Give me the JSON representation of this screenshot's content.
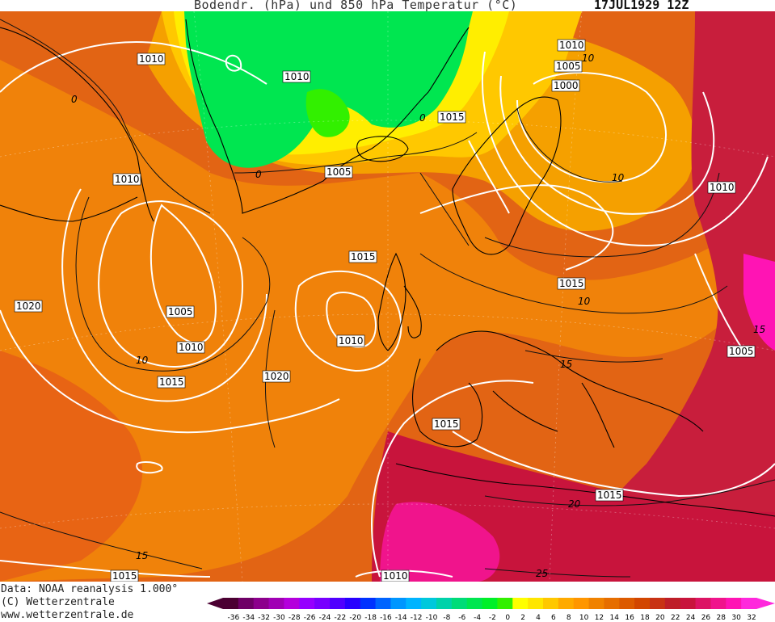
{
  "header": {
    "title": "Bodendr. (hPa) und 850 hPa Temperatur (°C)",
    "date": "17JUL1929 12Z"
  },
  "footer": {
    "data_line": "Data: NOAA reanalysis 1.000°",
    "copyright": "(C) Wetterzentrale",
    "website": "www.wetterzentrale.de"
  },
  "isobar_labels": [
    "1010",
    "1010",
    "1015",
    "1010",
    "1005",
    "1010",
    "1005",
    "1000",
    "1010",
    "1015",
    "1015",
    "1005",
    "1010",
    "1010",
    "1015",
    "1020",
    "1020",
    "1015",
    "1015",
    "1005",
    "1015",
    "1020",
    "1010"
  ],
  "isotherm_labels": [
    "0",
    "0",
    "0",
    "10",
    "10",
    "10",
    "10",
    "15",
    "15",
    "15",
    "20",
    "25"
  ],
  "scale": {
    "ticks": [
      "-36",
      "-34",
      "-32",
      "-30",
      "-28",
      "-26",
      "-24",
      "-22",
      "-20",
      "-18",
      "-16",
      "-14",
      "-12",
      "-10",
      "-8",
      "-6",
      "-4",
      "-2",
      "0",
      "2",
      "4",
      "6",
      "8",
      "10",
      "12",
      "14",
      "16",
      "18",
      "20",
      "22",
      "24",
      "26",
      "28",
      "30",
      "32"
    ],
    "colors": [
      "#4b0032",
      "#6e0066",
      "#8c008c",
      "#a000b4",
      "#b400dc",
      "#9600ff",
      "#7800ff",
      "#5000ff",
      "#2800ff",
      "#0032ff",
      "#0064ff",
      "#0096ff",
      "#00b4ff",
      "#00c8dc",
      "#00d2aa",
      "#00dc78",
      "#00e650",
      "#00f028",
      "#32f000",
      "#ffff00",
      "#ffe600",
      "#ffc800",
      "#ffaa00",
      "#ff9600",
      "#f08200",
      "#e66e00",
      "#dc5a00",
      "#d24600",
      "#c83214",
      "#be1e28",
      "#c8143c",
      "#dc1464",
      "#f0148c",
      "#ff14b4",
      "#ff28dc"
    ]
  }
}
